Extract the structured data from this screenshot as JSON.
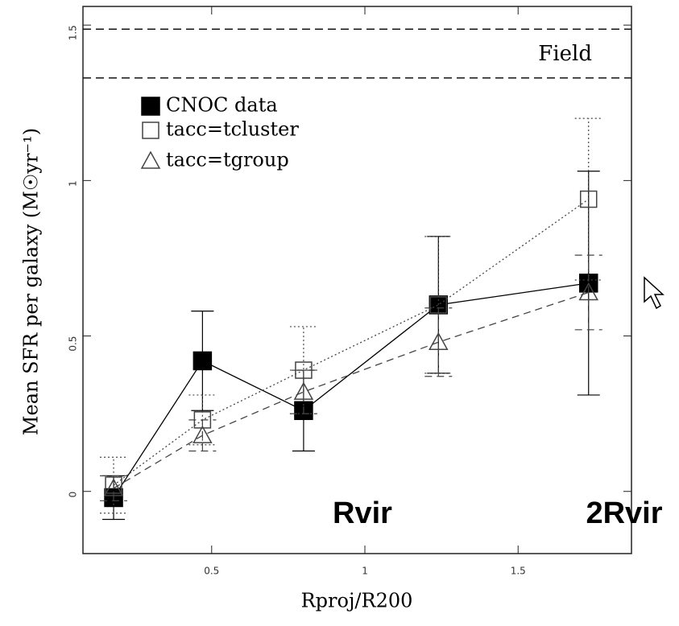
{
  "chart_data": {
    "type": "errorbar-line",
    "ylabel": "Mean SFR per galaxy (M☉yr⁻¹)",
    "xlabel": "Rproj/R200",
    "xlim": [
      0.08,
      1.87
    ],
    "ylim": [
      -0.2,
      1.56
    ],
    "xticks": [
      0.5,
      1,
      1.5
    ],
    "yticks": [
      0,
      0.5,
      1,
      1.5
    ],
    "hlines": [
      1.487,
      1.33
    ],
    "annotations": [
      "Field",
      "Rvir",
      "2Rvir"
    ],
    "series": [
      {
        "name": "CNOC data",
        "color": "#000000",
        "marker": "square-filled",
        "line": "solid",
        "x": [
          0.18,
          0.47,
          0.8,
          1.24,
          1.73
        ],
        "values": [
          -0.02,
          0.42,
          0.26,
          0.6,
          0.67
        ],
        "errors": [
          0.07,
          0.16,
          0.13,
          0.22,
          0.36
        ]
      },
      {
        "name": "tacc=tcluster",
        "color": "#444444",
        "marker": "square-open",
        "line": "dotted",
        "x": [
          0.18,
          0.47,
          0.8,
          1.24,
          1.73
        ],
        "values": [
          0.02,
          0.23,
          0.39,
          0.6,
          0.94
        ],
        "errors": [
          0.09,
          0.08,
          0.14,
          0.22,
          0.26
        ]
      },
      {
        "name": "tacc=tgroup",
        "color": "#444444",
        "marker": "triangle-open",
        "line": "dashed",
        "x": [
          0.18,
          0.47,
          0.8,
          1.24,
          1.73
        ],
        "values": [
          0.01,
          0.18,
          0.32,
          0.48,
          0.64
        ],
        "errors": [
          0.04,
          0.05,
          0.07,
          0.11,
          0.12
        ]
      }
    ]
  }
}
